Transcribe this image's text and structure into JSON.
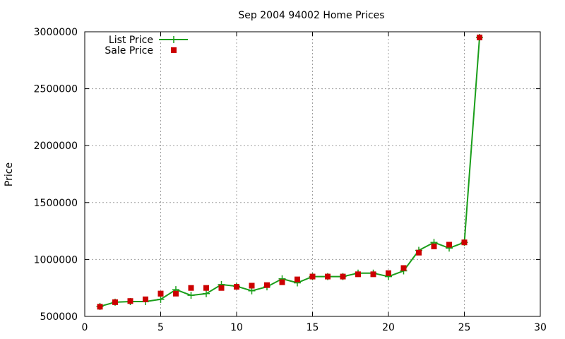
{
  "chart_data": {
    "type": "line",
    "title": "Sep 2004 94002 Home Prices",
    "xlabel": "",
    "ylabel": "Price",
    "xlim": [
      0,
      30
    ],
    "ylim": [
      500000,
      3000000
    ],
    "xticks": [
      0,
      5,
      10,
      15,
      20,
      25,
      30
    ],
    "yticks": [
      500000,
      1000000,
      1500000,
      2000000,
      2500000,
      3000000
    ],
    "grid": true,
    "legend_position": "top-left",
    "series": [
      {
        "name": "List Price",
        "style": "line-with-crosses",
        "color": "#1a9e1a",
        "x": [
          1,
          2,
          3,
          4,
          5,
          6,
          7,
          8,
          9,
          10,
          11,
          12,
          13,
          14,
          15,
          16,
          17,
          18,
          19,
          20,
          21,
          22,
          23,
          24,
          25,
          26
        ],
        "y": [
          588000,
          625000,
          630000,
          630000,
          650000,
          735000,
          685000,
          700000,
          780000,
          765000,
          725000,
          760000,
          830000,
          795000,
          850000,
          850000,
          850000,
          880000,
          880000,
          850000,
          900000,
          1080000,
          1150000,
          1100000,
          1150000,
          2950000
        ]
      },
      {
        "name": "Sale Price",
        "style": "squares",
        "color": "#cc0000",
        "x": [
          1,
          2,
          3,
          4,
          5,
          5,
          6,
          7,
          8,
          9,
          10,
          11,
          12,
          13,
          14,
          15,
          16,
          17,
          18,
          19,
          20,
          21,
          22,
          23,
          24,
          25,
          26
        ],
        "y": [
          585000,
          625000,
          635000,
          650000,
          700000,
          700000,
          700000,
          750000,
          750000,
          750000,
          760000,
          770000,
          775000,
          800000,
          825000,
          850000,
          850000,
          850000,
          870000,
          870000,
          880000,
          925000,
          1060000,
          1115000,
          1130000,
          1150000,
          2950000
        ]
      }
    ]
  }
}
